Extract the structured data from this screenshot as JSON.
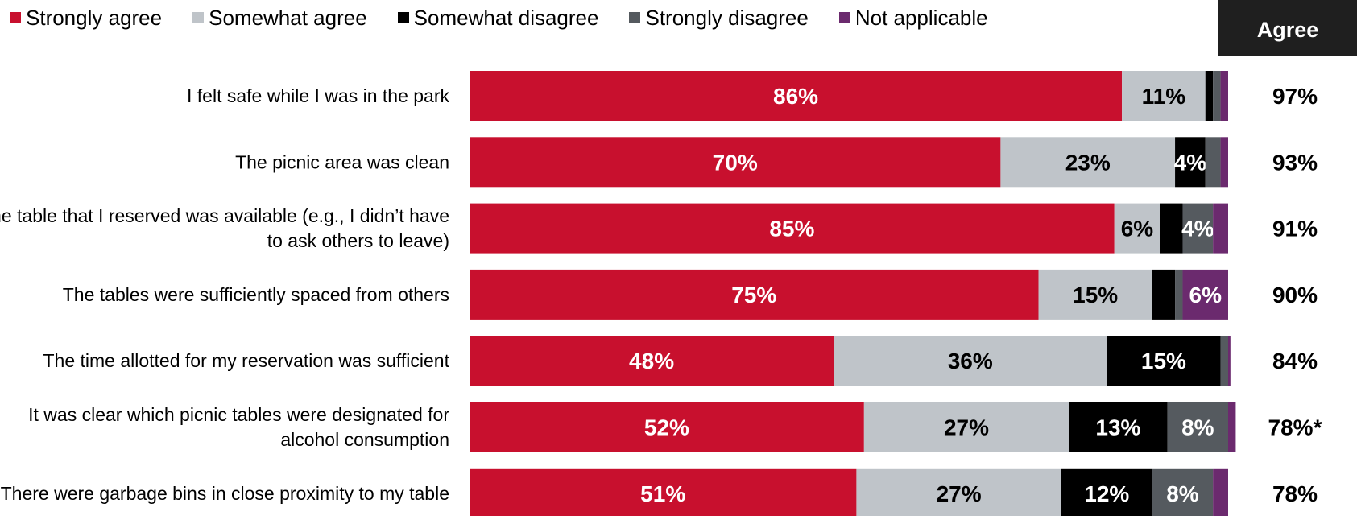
{
  "legend": [
    {
      "label": "Strongly agree",
      "color": "#c8102e"
    },
    {
      "label": "Somewhat agree",
      "color": "#bfc4c9"
    },
    {
      "label": "Somewhat disagree",
      "color": "#000000"
    },
    {
      "label": "Strongly disagree",
      "color": "#555a5f"
    },
    {
      "label": "Not applicable",
      "color": "#6b2a6e"
    }
  ],
  "agree_header": "Agree",
  "chart_data": {
    "type": "bar",
    "orientation": "horizontal",
    "stacked": true,
    "xlim": [
      0,
      100
    ],
    "categories": [
      [
        "I felt safe while I was in the park"
      ],
      [
        "The picnic area was clean"
      ],
      [
        "The table that I reserved was available (e.g., I didn’t have",
        "to ask others to leave)"
      ],
      [
        "The tables were sufficiently spaced from others"
      ],
      [
        "The time allotted for my reservation was sufficient"
      ],
      [
        "It was clear which picnic tables were designated for",
        "alcohol consumption"
      ],
      [
        "There were garbage bins in close proximity to my table"
      ]
    ],
    "series": [
      {
        "name": "Strongly agree",
        "color": "#c8102e",
        "label_color": "#ffffff",
        "values": [
          86,
          70,
          85,
          75,
          48,
          52,
          51
        ],
        "labels": [
          "86%",
          "70%",
          "85%",
          "75%",
          "48%",
          "52%",
          "51%"
        ]
      },
      {
        "name": "Somewhat agree",
        "color": "#bfc4c9",
        "label_color": "#000000",
        "values": [
          11,
          23,
          6,
          15,
          36,
          27,
          27
        ],
        "labels": [
          "11%",
          "23%",
          "6%",
          "15%",
          "36%",
          "27%",
          "27%"
        ]
      },
      {
        "name": "Somewhat disagree",
        "color": "#000000",
        "label_color": "#ffffff",
        "values": [
          1,
          4,
          3,
          3,
          15,
          13,
          12
        ],
        "labels": [
          "",
          "4%",
          "",
          "",
          "15%",
          "13%",
          "12%"
        ]
      },
      {
        "name": "Strongly disagree",
        "color": "#555a5f",
        "label_color": "#ffffff",
        "values": [
          1,
          2,
          4,
          1,
          1,
          8,
          8
        ],
        "labels": [
          "",
          "",
          "4%",
          "",
          "",
          "8%",
          "8%"
        ]
      },
      {
        "name": "Not applicable",
        "color": "#6b2a6e",
        "label_color": "#ffffff",
        "values": [
          1,
          1,
          2,
          6,
          0.3,
          1,
          2
        ],
        "labels": [
          "",
          "",
          "",
          "6%",
          "",
          "",
          ""
        ]
      }
    ],
    "agree_totals": [
      "97%",
      "93%",
      "91%",
      "90%",
      "84%",
      "78%*",
      "78%"
    ]
  }
}
